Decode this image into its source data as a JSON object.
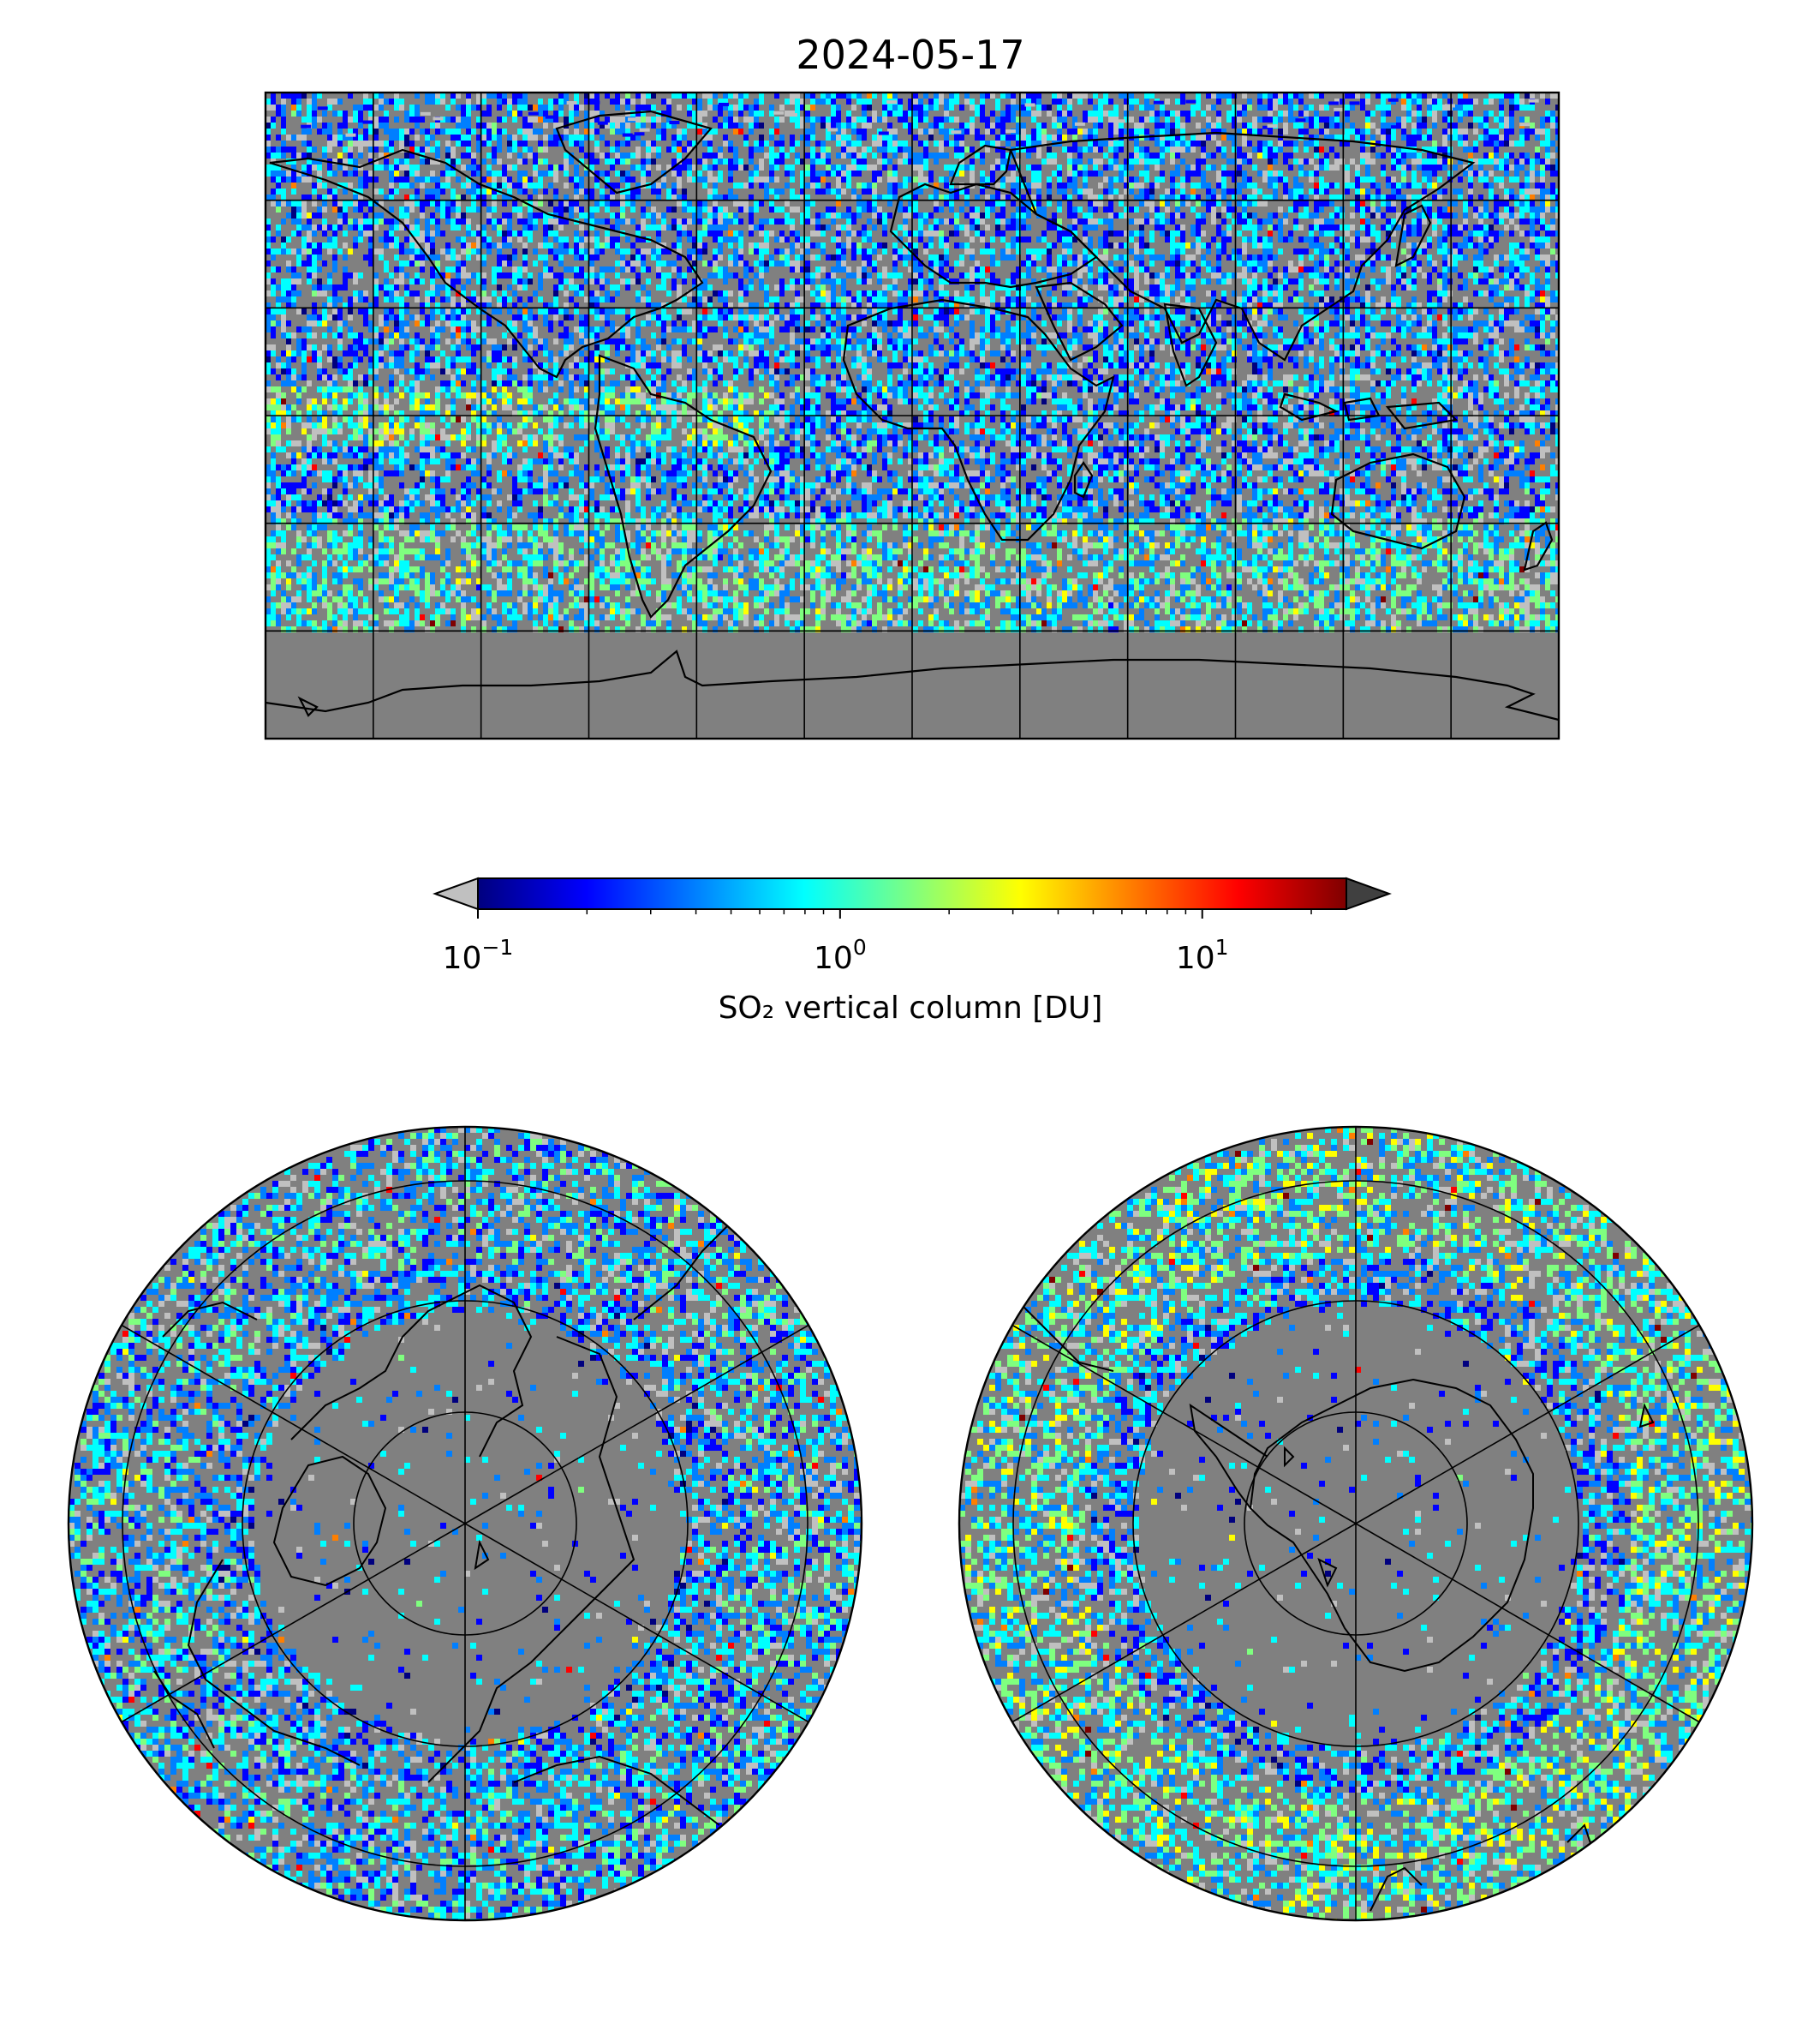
{
  "figure": {
    "title": "2024-05-17",
    "background": "#ffffff",
    "land_ocean_fill": "#808080",
    "grid_color": "#000000"
  },
  "colorbar": {
    "label": "SO₂ vertical column [DU]",
    "scale": "log",
    "range": [
      0.1,
      25
    ],
    "extend": "both",
    "under_color": "#c0c0c0",
    "over_color": "#404040",
    "ticks": [
      {
        "value": 0.1,
        "base": "10",
        "exp": "−1"
      },
      {
        "value": 1,
        "base": "10",
        "exp": "0"
      },
      {
        "value": 10,
        "base": "10",
        "exp": "1"
      }
    ],
    "colormap": [
      "#00007f",
      "#0000ff",
      "#007fff",
      "#00ffff",
      "#7fff7f",
      "#ffff00",
      "#ff7f00",
      "#ff0000",
      "#7f0000"
    ]
  },
  "maps": [
    {
      "id": "global",
      "projection": "plate-carree"
    },
    {
      "id": "north-polar",
      "projection": "north-polar-stereographic"
    },
    {
      "id": "south-polar",
      "projection": "south-polar-stereographic"
    }
  ]
}
